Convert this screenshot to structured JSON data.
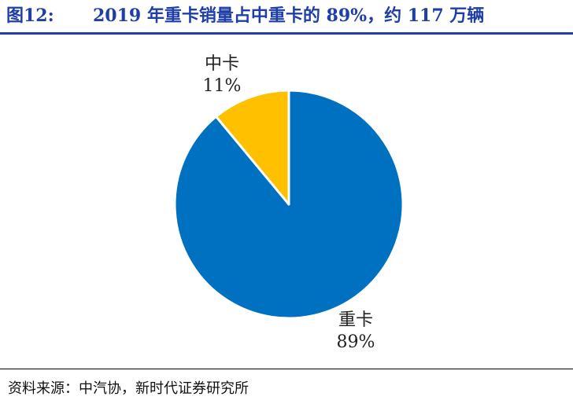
{
  "header": {
    "figure_label": "图12:",
    "title": "2019 年重卡销量占中重卡的 89%，约 117 万辆"
  },
  "chart_data": {
    "type": "pie",
    "categories": [
      "重卡",
      "中卡"
    ],
    "values": [
      89,
      11
    ],
    "value_labels": [
      "89%",
      "11%"
    ],
    "colors": [
      "#0070c0",
      "#ffc000"
    ],
    "start": "12 o'clock",
    "direction": "clockwise",
    "legend": "none"
  },
  "footer": {
    "source": "资料来源：中汽协，新时代证券研究所"
  }
}
